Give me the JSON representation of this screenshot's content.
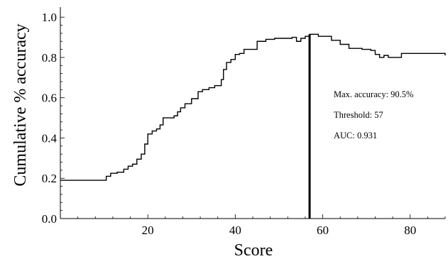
{
  "chart_data": {
    "type": "line",
    "step": true,
    "title": "",
    "xlabel": "Score",
    "ylabel": "Cumulative % accuracy",
    "xlim": [
      0,
      88
    ],
    "ylim": [
      0,
      1.05
    ],
    "xticks": [
      20,
      40,
      60,
      80
    ],
    "yticks": [
      0.0,
      0.2,
      0.4,
      0.6,
      0.8,
      1.0
    ],
    "ytick_labels": [
      "0.0",
      "0.2",
      "0.4",
      "0.6",
      "0.8",
      "1.0"
    ],
    "grid": false,
    "series": [
      {
        "x": [
          0,
          10.5,
          11.5,
          13,
          14.5,
          15.5,
          16.5,
          17.5,
          18.5,
          19.3,
          20,
          21,
          22,
          22.8,
          23.5,
          25,
          26,
          26.8,
          27.5,
          28.5,
          30,
          31.5,
          32.5,
          34,
          35.3,
          36.8,
          37.3,
          38,
          39,
          40,
          41,
          42,
          45,
          47,
          49,
          50,
          51,
          53,
          54,
          55,
          56,
          57,
          59,
          60,
          62,
          64,
          66,
          69,
          71,
          72,
          73,
          74,
          75,
          78,
          88
        ],
        "y": [
          0.19,
          0.21,
          0.225,
          0.23,
          0.245,
          0.26,
          0.27,
          0.295,
          0.32,
          0.37,
          0.42,
          0.435,
          0.445,
          0.465,
          0.5,
          0.5,
          0.51,
          0.53,
          0.55,
          0.57,
          0.595,
          0.63,
          0.64,
          0.65,
          0.66,
          0.69,
          0.74,
          0.775,
          0.79,
          0.815,
          0.82,
          0.84,
          0.88,
          0.89,
          0.895,
          0.895,
          0.895,
          0.9,
          0.88,
          0.895,
          0.905,
          0.915,
          0.905,
          0.905,
          0.885,
          0.865,
          0.845,
          0.84,
          0.835,
          0.815,
          0.8,
          0.81,
          0.8,
          0.82,
          0.81
        ]
      }
    ],
    "threshold": 57,
    "annotations": [
      {
        "label": "Max. accuracy:",
        "value": "90.5%"
      },
      {
        "label": "Threshold:",
        "value": "57"
      },
      {
        "label": "AUC:",
        "value": "0.931"
      }
    ]
  }
}
